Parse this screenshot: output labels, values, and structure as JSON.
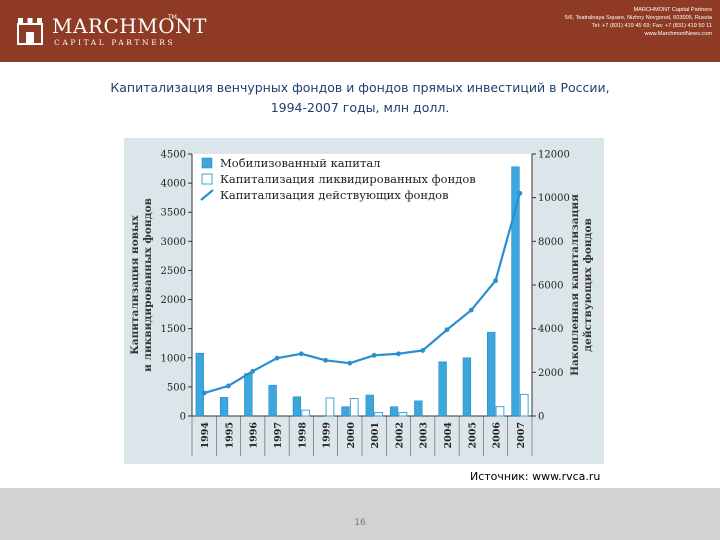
{
  "header": {
    "logo_name": "MARCHMONT",
    "logo_sub": "CAPITAL PARTNERS",
    "logo_tm": "TM",
    "contact_lines": [
      "MARCHMONT Capital Partners",
      "5/6, Teatralnaya Square, Nizhny Novgorod, 603005, Russia",
      "Tel: +7 (831) 419 45 69; Fax: +7 (831) 419 50 11",
      "www.MarchmontNews.com"
    ]
  },
  "title_lines": [
    "Капитализация венчурных фондов и фондов прямых инвестиций в России,",
    "1994-2007 годы, млн долл."
  ],
  "source": "Источник: www.rvca.ru",
  "page_number": "16",
  "colors": {
    "header_bg": "#8e3a24",
    "title": "#1f3f70",
    "chart_bg": "#dce6ea",
    "mobilized": "#3ba7dc",
    "liquidated": "#ffffff",
    "liquidated_edge": "#3ba7dc",
    "line": "#2a8fd0",
    "footer": "#d2d2d2"
  },
  "chart_data": {
    "type": "bar",
    "title": "",
    "categories": [
      "1994",
      "1995",
      "1996",
      "1997",
      "1998",
      "1999",
      "2000",
      "2001",
      "2002",
      "2003",
      "2004",
      "2005",
      "2006",
      "2007"
    ],
    "ylabel": "Капитализация новых и ликвидированных фондов",
    "y2label": "Накопленная капитализация действующих фондов",
    "ylim": [
      0,
      4500
    ],
    "yticks": [
      0,
      500,
      1000,
      1500,
      2000,
      2500,
      3000,
      3500,
      4000,
      4500
    ],
    "y2lim": [
      0,
      12000
    ],
    "y2ticks": [
      0,
      2000,
      4000,
      6000,
      8000,
      10000,
      12000
    ],
    "legend_position": "top-left",
    "grid": false,
    "series": [
      {
        "name": "Мобилизованный капитал",
        "type": "bar",
        "axis": "left",
        "values": [
          1080,
          320,
          730,
          530,
          330,
          0,
          160,
          360,
          160,
          260,
          930,
          1000,
          1440,
          4280
        ]
      },
      {
        "name": "Капитализация ликвидированных фондов",
        "type": "bar",
        "axis": "left",
        "values": [
          0,
          0,
          0,
          0,
          100,
          310,
          300,
          60,
          60,
          0,
          0,
          0,
          160,
          370
        ]
      },
      {
        "name": "Капитализация действующих фондов",
        "type": "line",
        "axis": "right",
        "values": [
          1050,
          1380,
          2050,
          2650,
          2850,
          2550,
          2420,
          2780,
          2850,
          3000,
          3950,
          4850,
          6200,
          10200
        ]
      }
    ]
  }
}
